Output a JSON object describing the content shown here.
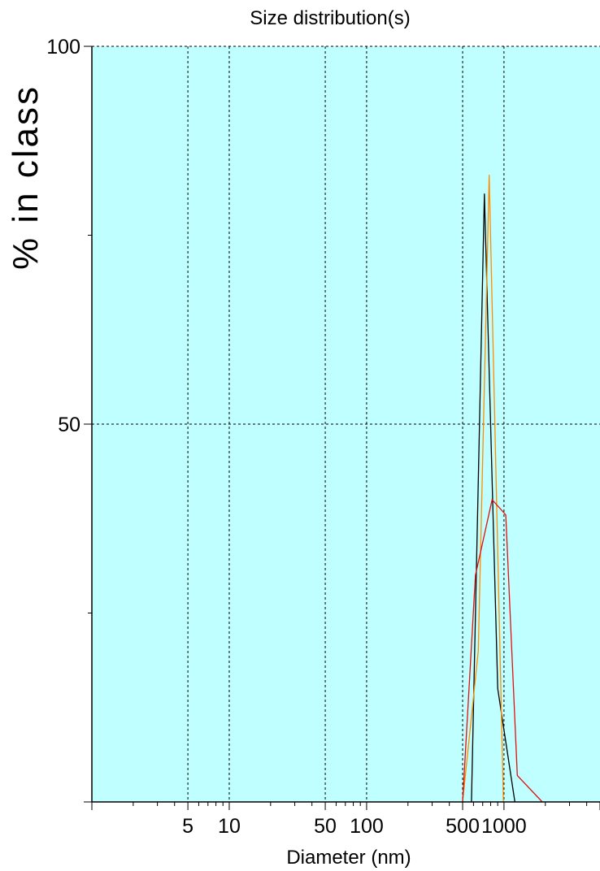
{
  "chart_data": {
    "type": "line",
    "title": "Size distribution(s)",
    "xlabel": "Diameter (nm)",
    "ylabel": "% in class",
    "x_scale": "log",
    "xlim": [
      1,
      5000
    ],
    "ylim": [
      0,
      100
    ],
    "x_tick_labels": [
      "5",
      "10",
      "50",
      "100",
      "500",
      "1000"
    ],
    "x_tick_values": [
      5,
      10,
      50,
      100,
      500,
      1000
    ],
    "y_tick_labels": [
      "50",
      "100"
    ],
    "y_tick_values": [
      50,
      100
    ],
    "grid": true,
    "plot_background": "#c0ffff",
    "series": [
      {
        "color": "#000000",
        "points": [
          [
            580,
            0
          ],
          [
            720,
            80.5
          ],
          [
            900,
            15
          ],
          [
            1200,
            0
          ]
        ]
      },
      {
        "color": "#ff8c00",
        "points": [
          [
            500,
            0
          ],
          [
            650,
            20
          ],
          [
            780,
            83
          ],
          [
            990,
            0
          ]
        ]
      },
      {
        "color": "#e01010",
        "points": [
          [
            500,
            0
          ],
          [
            620,
            30
          ],
          [
            820,
            40
          ],
          [
            1030,
            38
          ],
          [
            1250,
            3.5
          ],
          [
            1900,
            0
          ]
        ]
      }
    ]
  }
}
